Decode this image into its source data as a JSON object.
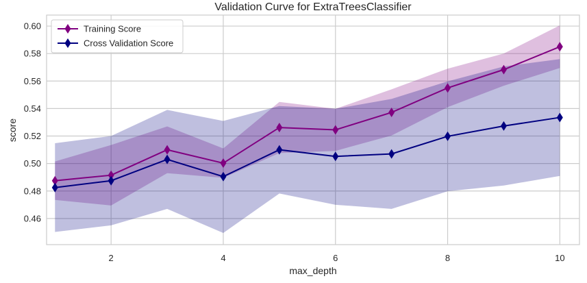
{
  "chart_data": {
    "type": "line",
    "title": "Validation Curve for ExtraTreesClassifier",
    "xlabel": "max_depth",
    "ylabel": "score",
    "xlim": [
      0.85,
      10.35
    ],
    "ylim": [
      0.441,
      0.608
    ],
    "x_ticks": [
      2,
      4,
      6,
      8,
      10
    ],
    "y_ticks": [
      0.46,
      0.48,
      0.5,
      0.52,
      0.54,
      0.56,
      0.58,
      0.6
    ],
    "y_tick_labels": [
      "0.46",
      "0.48",
      "0.50",
      "0.52",
      "0.54",
      "0.56",
      "0.58",
      "0.60"
    ],
    "grid": true,
    "legend_position": "top-left",
    "x": [
      1,
      2,
      3,
      4,
      5,
      6,
      7,
      8,
      9,
      10
    ],
    "series": [
      {
        "name": "Training Score",
        "color": "#800080",
        "band_color": "#800080",
        "band_opacity": 0.25,
        "values": [
          0.4875,
          0.4915,
          0.51,
          0.5003,
          0.5262,
          0.5245,
          0.5372,
          0.555,
          0.5683,
          0.585
        ],
        "upper": [
          0.5015,
          0.5135,
          0.527,
          0.511,
          0.5448,
          0.5398,
          0.554,
          0.569,
          0.58,
          0.6005
        ],
        "lower": [
          0.4735,
          0.4695,
          0.493,
          0.4896,
          0.5076,
          0.5092,
          0.5204,
          0.541,
          0.5566,
          0.5695
        ]
      },
      {
        "name": "Cross Validation Score",
        "color": "#000080",
        "band_color": "#000080",
        "band_opacity": 0.25,
        "values": [
          0.4825,
          0.4875,
          0.503,
          0.4905,
          0.51,
          0.5052,
          0.507,
          0.5198,
          0.5273,
          0.5335
        ],
        "upper": [
          0.5148,
          0.52,
          0.539,
          0.531,
          0.5418,
          0.5398,
          0.547,
          0.5598,
          0.5706,
          0.576
        ],
        "lower": [
          0.4502,
          0.455,
          0.467,
          0.4495,
          0.4782,
          0.47,
          0.467,
          0.4798,
          0.484,
          0.491
        ]
      }
    ]
  }
}
